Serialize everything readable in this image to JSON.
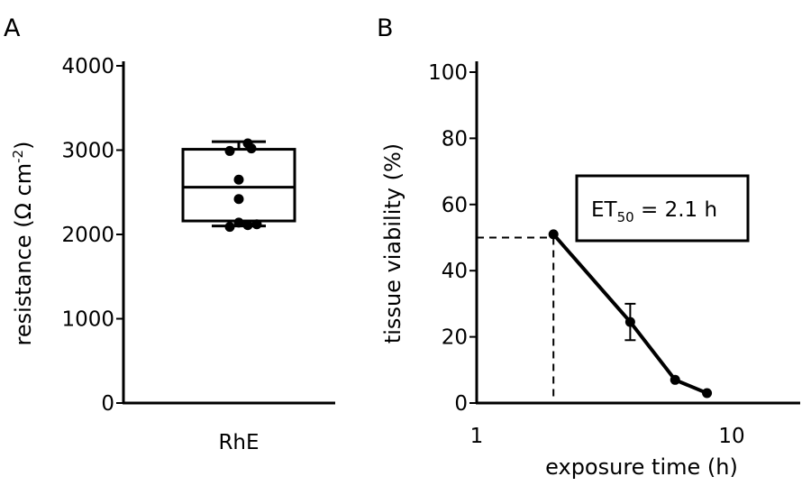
{
  "chart_data": [
    {
      "panel": "A",
      "type": "box",
      "ylabel": "resistance (Ω cm",
      "ylabel_sup": "-2",
      "ylabel_close": ")",
      "ylim": [
        0,
        4000
      ],
      "yticks": [
        "0",
        "1000",
        "2000",
        "3000",
        "4000"
      ],
      "categories": [
        "RhE"
      ],
      "box": {
        "whisker_low": 2100,
        "q1": 2160,
        "median": 2560,
        "q3": 3010,
        "whisker_high": 3100
      },
      "points": [
        2090,
        2110,
        2120,
        2140,
        2420,
        2650,
        2990,
        3020,
        3080
      ]
    },
    {
      "panel": "B",
      "type": "line",
      "xscale": "log",
      "xlabel": "exposure time (h)",
      "ylabel": "tissue viability (%)",
      "xlim": [
        1,
        20
      ],
      "xticks": [
        "1",
        "10"
      ],
      "ylim": [
        0,
        100
      ],
      "yticks": [
        "0",
        "20",
        "40",
        "60",
        "80",
        "100"
      ],
      "x": [
        2,
        4,
        6,
        8
      ],
      "y": [
        51,
        24.5,
        7,
        3
      ],
      "yerr": [
        0,
        5.5,
        0,
        0
      ],
      "reference": {
        "x": 2,
        "y": 50
      },
      "annotation": {
        "prefix": "ET",
        "sub": "50",
        "suffix": " = 2.1 h"
      }
    }
  ]
}
